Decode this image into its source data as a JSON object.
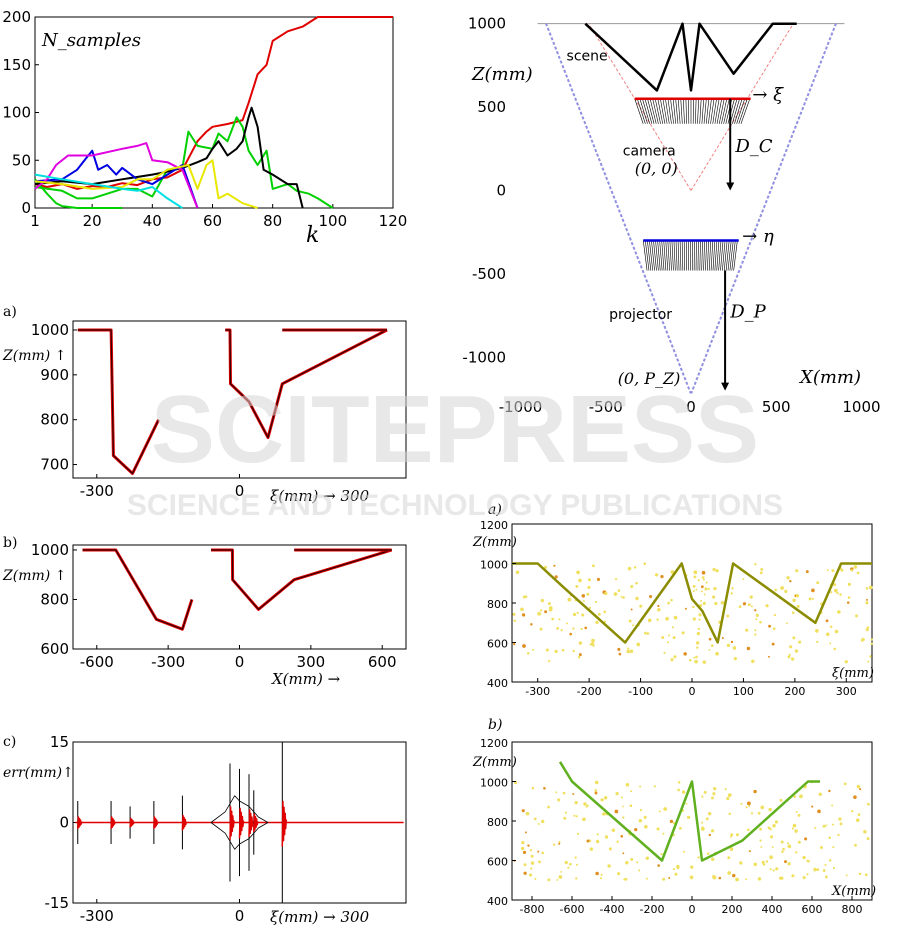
{
  "watermark": {
    "main": "SCITEPRESS",
    "sub": "SCIENCE AND TECHNOLOGY PUBLICATIONS"
  },
  "chart_data": [
    {
      "id": "samples",
      "type": "line",
      "ylabel": "N_samples",
      "xlabel": "k",
      "xlim": [
        1,
        120
      ],
      "ylim": [
        0,
        200
      ],
      "xticks": [
        1,
        20,
        40,
        60,
        80,
        100,
        120
      ],
      "yticks": [
        0,
        50,
        100,
        150,
        200
      ],
      "colors": {
        "red": "#e00000",
        "green": "#00d000",
        "black": "#000000",
        "blue": "#0000e0",
        "magenta": "#e000e0",
        "yellow": "#e8e800",
        "cyan": "#00e0e0"
      },
      "series": [
        {
          "color": "red",
          "x": [
            1,
            5,
            10,
            15,
            20,
            25,
            30,
            35,
            40,
            45,
            50,
            55,
            58,
            60,
            65,
            70,
            72,
            75,
            78,
            80,
            85,
            90,
            95,
            100,
            105,
            120
          ],
          "y": [
            25,
            22,
            25,
            20,
            23,
            22,
            26,
            24,
            30,
            32,
            40,
            70,
            80,
            85,
            88,
            92,
            110,
            140,
            150,
            175,
            185,
            190,
            200,
            200,
            200,
            200
          ]
        },
        {
          "color": "green",
          "x": [
            1,
            10,
            15,
            20,
            25,
            30,
            35,
            40,
            45,
            50,
            52,
            55,
            60,
            62,
            65,
            68,
            70,
            72,
            75,
            78,
            80,
            85,
            88,
            92,
            95,
            100
          ],
          "y": [
            22,
            18,
            10,
            10,
            15,
            20,
            20,
            12,
            40,
            42,
            80,
            65,
            62,
            78,
            70,
            95,
            85,
            60,
            45,
            60,
            20,
            25,
            18,
            15,
            10,
            0
          ]
        },
        {
          "color": "green",
          "x": [
            1,
            5,
            8,
            10,
            15,
            20,
            25,
            30
          ],
          "y": [
            30,
            15,
            5,
            2,
            0,
            0,
            0,
            0
          ]
        },
        {
          "color": "black",
          "x": [
            1,
            10,
            20,
            30,
            40,
            45,
            50,
            55,
            58,
            60,
            62,
            65,
            68,
            70,
            72,
            73,
            75,
            77,
            80,
            85,
            88,
            90
          ],
          "y": [
            25,
            28,
            25,
            30,
            35,
            38,
            42,
            48,
            52,
            62,
            70,
            55,
            62,
            70,
            95,
            105,
            85,
            40,
            35,
            25,
            25,
            0
          ]
        },
        {
          "color": "blue",
          "x": [
            1,
            10,
            15,
            18,
            20,
            22,
            25,
            28,
            30,
            35,
            40,
            45,
            50,
            55
          ],
          "y": [
            28,
            30,
            40,
            52,
            60,
            40,
            45,
            35,
            42,
            30,
            25,
            35,
            45,
            0
          ]
        },
        {
          "color": "magenta",
          "x": [
            1,
            5,
            8,
            12,
            20,
            30,
            35,
            38,
            40,
            45,
            50,
            55
          ],
          "y": [
            20,
            30,
            45,
            55,
            55,
            62,
            65,
            68,
            50,
            48,
            40,
            0
          ]
        },
        {
          "color": "yellow",
          "x": [
            1,
            10,
            20,
            30,
            35,
            40,
            45,
            52,
            55,
            58,
            60,
            62,
            65,
            70,
            75
          ],
          "y": [
            28,
            25,
            20,
            22,
            30,
            30,
            40,
            45,
            20,
            45,
            50,
            10,
            15,
            5,
            0
          ]
        },
        {
          "color": "cyan",
          "x": [
            1,
            10,
            20,
            30,
            35,
            40,
            45,
            50
          ],
          "y": [
            35,
            30,
            25,
            20,
            18,
            22,
            10,
            0
          ]
        }
      ]
    },
    {
      "id": "geometry",
      "type": "scatter",
      "xlabel": "X(mm)",
      "ylabel": "Z(mm)",
      "xlim": [
        -1050,
        1050
      ],
      "ylim": [
        -1220,
        1040
      ],
      "xticks": [
        -1000,
        -500,
        0,
        500,
        1000
      ],
      "yticks": [
        1000,
        500,
        0,
        -500,
        -1000
      ],
      "labels": {
        "scene": "scene",
        "camera": "camera",
        "projector": "projector",
        "xi": "→ ξ",
        "eta": "→ η",
        "dc": "D_C",
        "dp": "D_P",
        "origin": "(0, 0)",
        "pz": "(0, P_Z)"
      },
      "scene_x": [
        -620,
        -200,
        -50,
        0,
        50,
        250,
        480,
        620
      ],
      "scene_z": [
        1000,
        600,
        1000,
        600,
        1000,
        700,
        1000,
        1000
      ],
      "camera_plane": {
        "z": 550,
        "x0": -330,
        "x1": 350
      },
      "projector_plane": {
        "z": -300,
        "x0": -280,
        "x1": 280
      },
      "dc_arrow": {
        "x": 230,
        "z_from": 550,
        "z_to": 0
      },
      "dp_arrow": {
        "x": 200,
        "z_from": -480,
        "z_to": -1200
      }
    },
    {
      "id": "panel-a",
      "type": "line",
      "panel_label": "a)",
      "ylabel": "Z(mm) ↑",
      "xlabel": "ξ(mm) → 300",
      "xlim": [
        -350,
        350
      ],
      "ylim": [
        670,
        1020
      ],
      "xticks": [
        -300,
        0
      ],
      "yticks": [
        1000,
        900,
        800,
        700
      ],
      "colors": {
        "true": "#e00000",
        "est": "#300000"
      },
      "segments": [
        {
          "x": [
            -340,
            -270,
            -265,
            -225,
            -170
          ],
          "y": [
            1000,
            1000,
            720,
            680,
            800
          ]
        },
        {
          "x": [
            -30,
            -20,
            -19,
            20,
            60,
            90,
            310
          ],
          "y": [
            1000,
            1000,
            880,
            840,
            760,
            880,
            1000
          ]
        },
        {
          "x": [
            90,
            310
          ],
          "y": [
            1000,
            1000
          ]
        }
      ]
    },
    {
      "id": "panel-b",
      "type": "line",
      "panel_label": "b)",
      "ylabel": "Z(mm) ↑",
      "xlabel": "X(mm) →",
      "xlim": [
        -700,
        700
      ],
      "ylim": [
        600,
        1020
      ],
      "xticks": [
        -600,
        -300,
        0,
        300,
        600
      ],
      "yticks": [
        1000,
        800,
        600
      ],
      "colors": {
        "true": "#e00000",
        "est": "#300000"
      },
      "segments": [
        {
          "x": [
            -660,
            -520,
            -350,
            -240,
            -200
          ],
          "y": [
            1000,
            1000,
            720,
            680,
            800
          ]
        },
        {
          "x": [
            -120,
            -30,
            -29,
            80,
            230,
            640
          ],
          "y": [
            1000,
            1000,
            880,
            760,
            880,
            1000
          ]
        },
        {
          "x": [
            230,
            640
          ],
          "y": [
            1000,
            1000
          ]
        }
      ]
    },
    {
      "id": "panel-c",
      "type": "line",
      "panel_label": "c)",
      "ylabel": "err(mm)↑",
      "xlabel": "ξ(mm) → 300",
      "xlim": [
        -350,
        350
      ],
      "ylim": [
        -15,
        15
      ],
      "xticks": [
        -300,
        0
      ],
      "yticks": [
        15,
        0,
        -15
      ],
      "colors": {
        "err": "#e00000",
        "std": "#000000"
      },
      "spikes": [
        {
          "x": -340,
          "amp": 4
        },
        {
          "x": -270,
          "amp": 4
        },
        {
          "x": -230,
          "amp": 3
        },
        {
          "x": -180,
          "amp": 4
        },
        {
          "x": -120,
          "amp": 5
        },
        {
          "x": -20,
          "amp": 11
        },
        {
          "x": 0,
          "amp": 10
        },
        {
          "x": 20,
          "amp": 9
        },
        {
          "x": 30,
          "amp": 6
        },
        {
          "x": 90,
          "amp": 15
        }
      ]
    },
    {
      "id": "density-a",
      "type": "heatmap",
      "panel_label": "a)",
      "ylabel": "Z(mm)",
      "xlabel": "ξ(mm)",
      "xlim": [
        -350,
        350
      ],
      "ylim": [
        400,
        1200
      ],
      "xticks": [
        -300,
        -200,
        -100,
        0,
        100,
        200,
        300
      ],
      "yticks": [
        1200,
        1000,
        800,
        600,
        400
      ],
      "profile_x": [
        -350,
        -300,
        -250,
        -130,
        -20,
        0,
        20,
        50,
        80,
        240,
        290,
        350
      ],
      "profile_y": [
        1000,
        1000,
        880,
        600,
        1000,
        820,
        760,
        600,
        1000,
        700,
        1000,
        1000
      ]
    },
    {
      "id": "density-b",
      "type": "heatmap",
      "panel_label": "b)",
      "ylabel": "Z(mm)",
      "xlabel": "X(mm)",
      "xlim": [
        -900,
        900
      ],
      "ylim": [
        400,
        1200
      ],
      "xticks": [
        -800,
        -600,
        -400,
        -200,
        0,
        200,
        400,
        600,
        800
      ],
      "yticks": [
        1200,
        1000,
        800,
        600,
        400
      ],
      "profile_x": [
        -660,
        -600,
        -150,
        0,
        50,
        250,
        580,
        640
      ],
      "profile_y": [
        1100,
        1000,
        600,
        1000,
        600,
        700,
        1000,
        1000
      ]
    }
  ]
}
